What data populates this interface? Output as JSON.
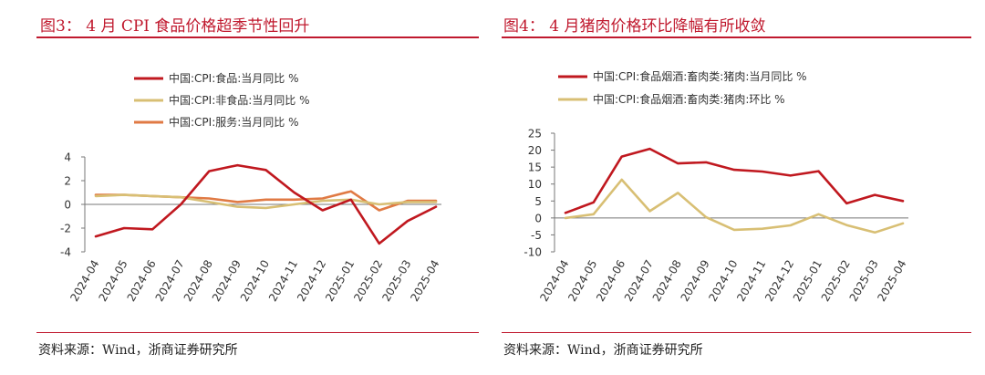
{
  "figures": [
    {
      "title": "图3： 4 月 CPI 食品价格超季节性回升",
      "source": "资料来源：Wind，浙商证券研究所"
    },
    {
      "title": "图4： 4 月猪肉价格环比降幅有所收敛",
      "source": "资料来源：Wind，浙商证券研究所"
    }
  ],
  "chart_data": [
    {
      "type": "line",
      "title": "",
      "xlabel": "",
      "ylabel": "",
      "ylim": [
        -4,
        4
      ],
      "yticks": [
        -4,
        -2,
        0,
        2,
        4
      ],
      "grid": false,
      "legend_position": "top",
      "x": [
        "2024-04",
        "2024-05",
        "2024-06",
        "2024-07",
        "2024-08",
        "2024-09",
        "2024-10",
        "2024-11",
        "2024-12",
        "2025-01",
        "2025-02",
        "2025-03",
        "2025-04"
      ],
      "series": [
        {
          "name": "中国:CPI:食品:当月同比 %",
          "color": "#c0181f",
          "values": [
            -2.7,
            -2.0,
            -2.1,
            0.0,
            2.8,
            3.3,
            2.9,
            1.0,
            -0.5,
            0.4,
            -3.3,
            -1.4,
            -0.2
          ]
        },
        {
          "name": "中国:CPI:非食品:当月同比 %",
          "color": "#d8bf74",
          "values": [
            0.7,
            0.8,
            0.7,
            0.6,
            0.2,
            -0.2,
            -0.3,
            0.0,
            0.3,
            0.4,
            0.0,
            0.2,
            0.2
          ]
        },
        {
          "name": "中国:CPI:服务:当月同比 %",
          "color": "#e07a44",
          "values": [
            0.8,
            0.8,
            0.7,
            0.6,
            0.5,
            0.2,
            0.4,
            0.4,
            0.5,
            1.1,
            -0.5,
            0.3,
            0.3
          ]
        }
      ]
    },
    {
      "type": "line",
      "title": "",
      "xlabel": "",
      "ylabel": "",
      "ylim": [
        -10,
        25
      ],
      "yticks": [
        -10,
        -5,
        0,
        5,
        10,
        15,
        20,
        25
      ],
      "grid": false,
      "legend_position": "top",
      "x": [
        "2024-04",
        "2024-05",
        "2024-06",
        "2024-07",
        "2024-08",
        "2024-09",
        "2024-10",
        "2024-11",
        "2024-12",
        "2025-01",
        "2025-02",
        "2025-03",
        "2025-04"
      ],
      "series": [
        {
          "name": "中国:CPI:食品烟酒:畜肉类:猪肉:当月同比 %",
          "color": "#c0181f",
          "values": [
            1.5,
            4.6,
            18.1,
            20.4,
            16.1,
            16.4,
            14.2,
            13.7,
            12.5,
            13.8,
            4.3,
            6.8,
            5.0
          ]
        },
        {
          "name": "中国:CPI:食品烟酒:畜肉类:猪肉:环比 %",
          "color": "#d8bf74",
          "values": [
            0.0,
            1.1,
            11.3,
            2.0,
            7.4,
            0.2,
            -3.5,
            -3.2,
            -2.2,
            1.1,
            -2.1,
            -4.3,
            -1.6
          ]
        }
      ]
    }
  ]
}
